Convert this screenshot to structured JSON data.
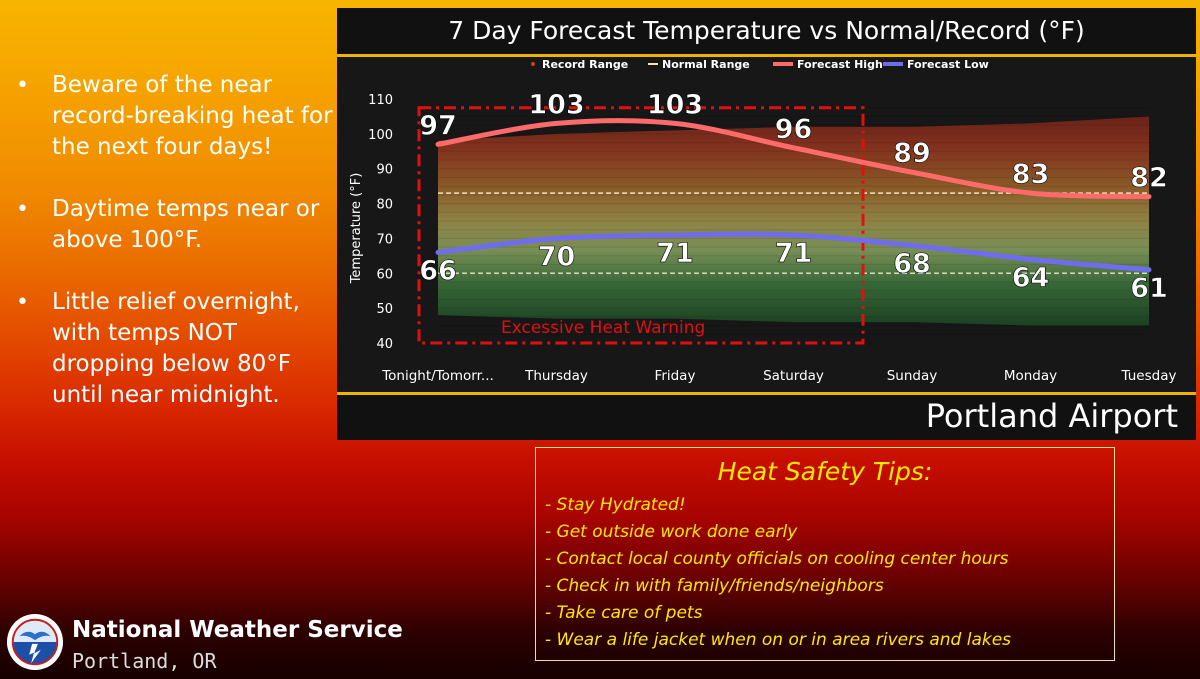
{
  "bullets": [
    "Beware of the near record-breaking heat for the next four days!",
    "Daytime temps near or above 100°F.",
    "Little relief overnight, with temps NOT dropping below 80°F until near midnight."
  ],
  "chart_data": {
    "type": "line",
    "title": "7 Day Forecast Temperature vs Normal/Record (°F)",
    "ylabel": "Temperature (°F)",
    "xlabel": "",
    "ylim": [
      40,
      110
    ],
    "yticks": [
      40,
      50,
      60,
      70,
      80,
      90,
      100,
      110
    ],
    "categories": [
      "Tonight/Tomorr...",
      "Thursday",
      "Friday",
      "Saturday",
      "Sunday",
      "Monday",
      "Tuesday"
    ],
    "legend": [
      "Record Range",
      "Normal Range",
      "Forecast High",
      "Forecast Low"
    ],
    "series": [
      {
        "name": "Forecast High",
        "color": "#ff6b6b",
        "values": [
          97,
          103,
          103,
          96,
          89,
          83,
          82
        ],
        "labels": [
          "97",
          "103",
          "103",
          "96",
          "89",
          "83",
          "82"
        ]
      },
      {
        "name": "Forecast Low",
        "color": "#6f6cf0",
        "values": [
          66,
          70,
          71,
          71,
          68,
          64,
          61
        ],
        "labels": [
          "66",
          "70",
          "71",
          "71",
          "68",
          "64",
          "61"
        ]
      }
    ],
    "normal_range": {
      "high": 83,
      "low": 60
    },
    "record_range": {
      "high": [
        98,
        100,
        101,
        102,
        102,
        103,
        105
      ],
      "low": [
        48,
        47,
        47,
        46,
        46,
        45,
        45
      ]
    },
    "annotation": {
      "text": "Excessive Heat Warning",
      "color": "#e01010"
    }
  },
  "station": "Portland Airport",
  "tips": {
    "title": "Heat Safety Tips:",
    "items": [
      "- Stay Hydrated!",
      "- Get outside work done early",
      "- Contact local county officials on cooling center hours",
      "- Check in with family/friends/neighbors",
      "- Take care of pets",
      "- Wear a life jacket when on or in area rivers and lakes"
    ]
  },
  "agency": {
    "name": "National Weather Service",
    "office": "Portland, OR"
  }
}
